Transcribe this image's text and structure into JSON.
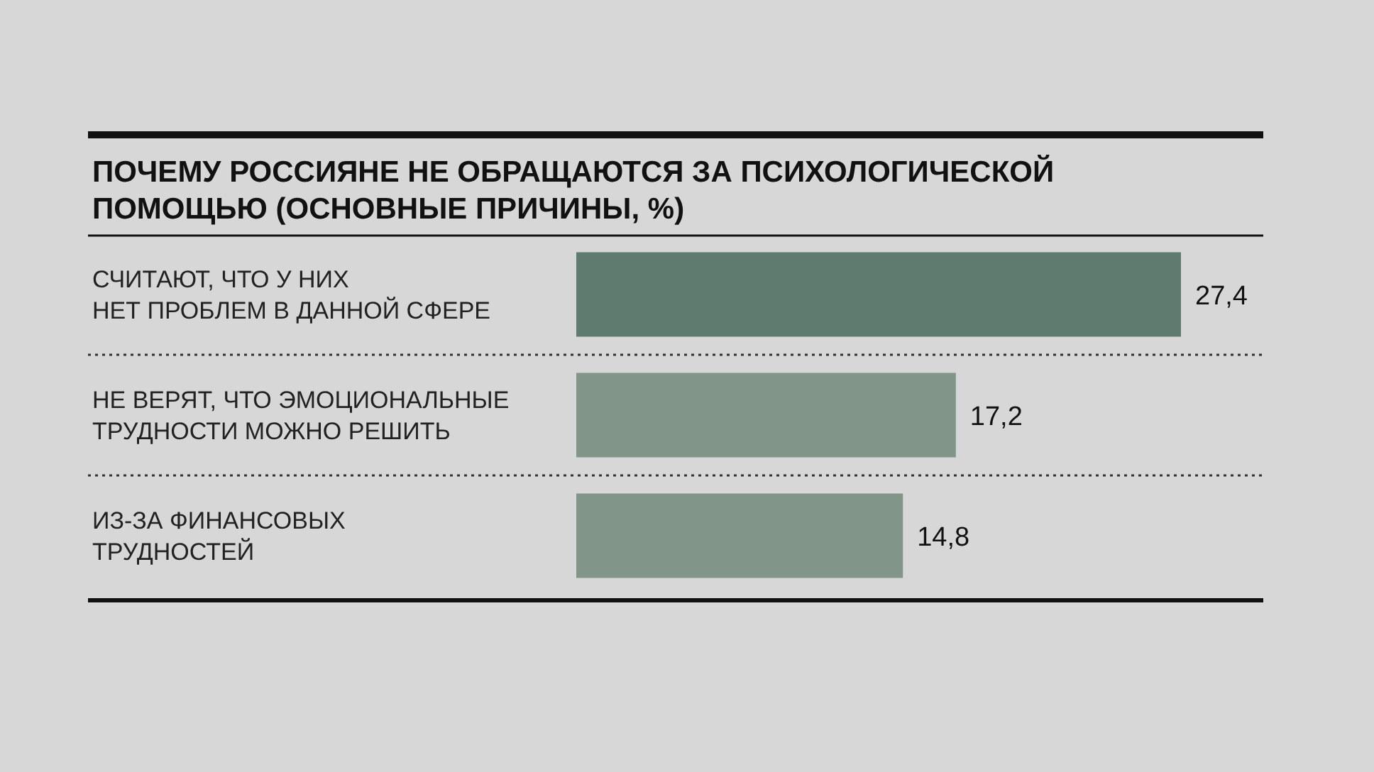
{
  "chart_data": {
    "type": "bar",
    "orientation": "horizontal",
    "title": "ПОЧЕМУ РОССИЯНЕ НЕ ОБРАЩАЮТСЯ ЗА ПСИХОЛОГИЧЕСКОЙ\nПОМОЩЬЮ (ОСНОВНЫЕ ПРИЧИНЫ, %)",
    "categories": [
      "СЧИТАЮТ, ЧТО У НИХ\nНЕТ ПРОБЛЕМ В ДАННОЙ СФЕРЕ",
      "НЕ ВЕРЯТ, ЧТО ЭМОЦИОНАЛЬНЫЕ\nТРУДНОСТИ МОЖНО РЕШИТЬ",
      "ИЗ-ЗА ФИНАНСОВЫХ\nТРУДНОСТЕЙ"
    ],
    "values": [
      27.4,
      17.2,
      14.8
    ],
    "colors": [
      "#5f7b6f",
      "#819589",
      "#819589"
    ],
    "value_labels": [
      "27,4",
      "17,2",
      "14,8"
    ]
  }
}
